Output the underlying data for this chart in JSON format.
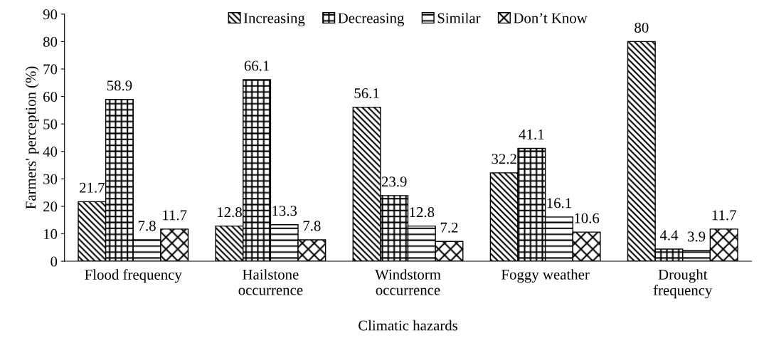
{
  "chart_data": {
    "type": "bar",
    "xlabel": "Climatic hazards",
    "ylabel": "Farmers' perception (%)",
    "categories": [
      "Flood frequency",
      "Hailstone\noccurrence",
      "Windstorm\noccurrence",
      "Foggy weather",
      "Drought\nfrequency"
    ],
    "series": [
      {
        "name": "Increasing",
        "color": "#000000",
        "values": [
          21.7,
          12.8,
          56.1,
          32.2,
          80
        ]
      },
      {
        "name": "Decreasing",
        "color": "#000000",
        "values": [
          58.9,
          66.1,
          23.9,
          41.1,
          4.4
        ]
      },
      {
        "name": "Similar",
        "color": "#000000",
        "values": [
          7.8,
          13.3,
          12.8,
          16.1,
          3.9
        ]
      },
      {
        "name": "Don’t Know",
        "color": "#000000",
        "values": [
          11.7,
          7.8,
          7.2,
          10.6,
          11.7
        ]
      }
    ],
    "ylim": [
      0,
      90
    ],
    "yticks": [
      0,
      10,
      20,
      30,
      40,
      50,
      60,
      70,
      80,
      90
    ],
    "data_labels": true,
    "grid": false,
    "legend": "top"
  }
}
